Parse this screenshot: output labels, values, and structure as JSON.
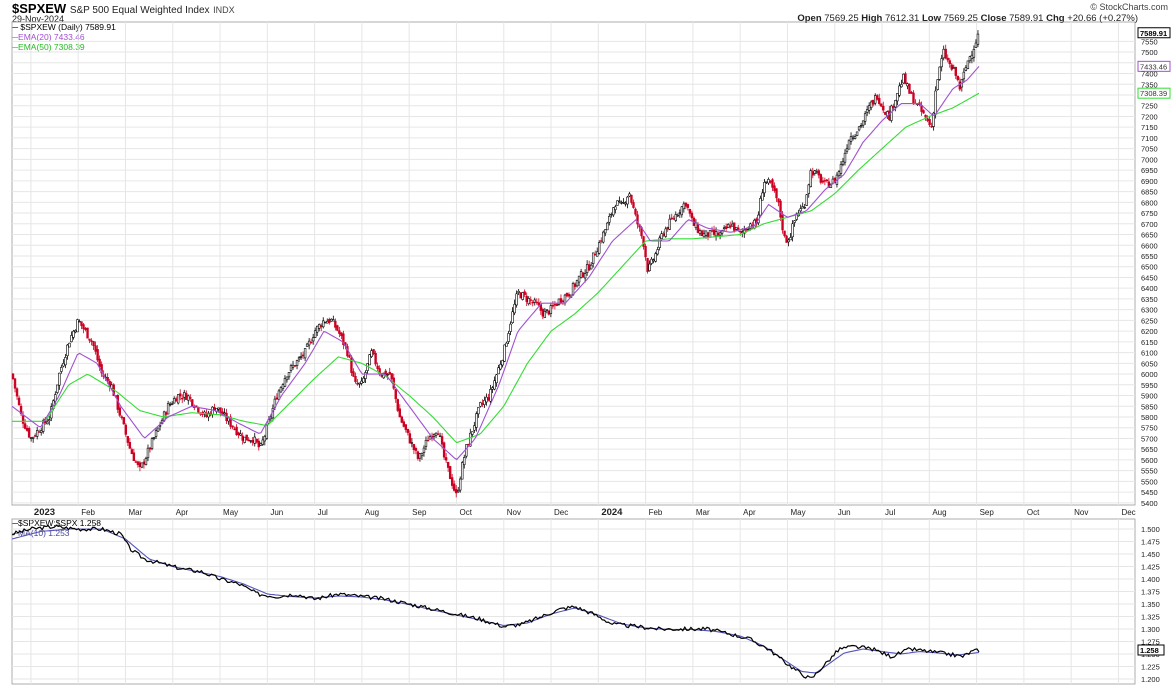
{
  "header": {
    "symbol": "$SPXEW",
    "name": "S&P 500 Equal Weighted Index",
    "exchange": "INDX",
    "date": "29-Nov-2024",
    "copyright": "© StockCharts.com",
    "ohlc": {
      "open_label": "Open",
      "open": "7569.25",
      "high_label": "High",
      "high": "7612.31",
      "low_label": "Low",
      "low": "7569.25",
      "close_label": "Close",
      "close": "7589.91",
      "chg_label": "Chg",
      "chg": "+20.66 (+0.27%)"
    }
  },
  "colors": {
    "up": "#000000",
    "down": "#cc0022",
    "ema20": "#a050d0",
    "ema50": "#33dd33",
    "ratio": "#000000",
    "ma10": "#5555bb",
    "grid": "#e6e6e6"
  },
  "chart_data": [
    {
      "type": "candlestick",
      "legend": [
        {
          "label": "$SPXEW (Daily) 7589.91",
          "color": "#000000"
        },
        {
          "label": "EMA(20) 7433.46",
          "color": "#a050d0"
        },
        {
          "label": "EMA(50) 7308.39",
          "color": "#33dd33"
        }
      ],
      "ylim": [
        5390,
        7640
      ],
      "y_ticks": [
        5400,
        5450,
        5500,
        5550,
        5600,
        5650,
        5700,
        5750,
        5800,
        5850,
        5900,
        5950,
        6000,
        6050,
        6100,
        6150,
        6200,
        6250,
        6300,
        6350,
        6400,
        6450,
        6500,
        6550,
        6600,
        6650,
        6700,
        6750,
        6800,
        6850,
        6900,
        6950,
        7000,
        7050,
        7100,
        7150,
        7200,
        7250,
        7300,
        7350,
        7400,
        7450,
        7500,
        7550
      ],
      "last_value_labels": [
        {
          "value": 7589.91,
          "label": "7589.91",
          "color": "#000000"
        },
        {
          "value": 7433.46,
          "label": "7433.46",
          "color": "#a050d0"
        },
        {
          "value": 7308.39,
          "label": "7308.39",
          "color": "#33dd33"
        }
      ],
      "x_months": [
        "2023",
        "Feb",
        "Mar",
        "Apr",
        "May",
        "Jun",
        "Jul",
        "Aug",
        "Sep",
        "Oct",
        "Nov",
        "Dec",
        "2024",
        "Feb",
        "Mar",
        "Apr",
        "May",
        "Jun",
        "Jul",
        "Aug",
        "Sep",
        "Oct",
        "Nov",
        "Dec"
      ],
      "x_bold": [
        "2023",
        "2024"
      ],
      "x_range_months": [
        -0.4,
        23.35
      ],
      "price_anchors": [
        [
          -0.4,
          6000
        ],
        [
          -0.2,
          5800
        ],
        [
          0.0,
          5700
        ],
        [
          0.2,
          5750
        ],
        [
          0.4,
          5800
        ],
        [
          0.6,
          6000
        ],
        [
          0.8,
          6150
        ],
        [
          1.0,
          6250
        ],
        [
          1.15,
          6200
        ],
        [
          1.3,
          6150
        ],
        [
          1.5,
          6000
        ],
        [
          1.7,
          5950
        ],
        [
          1.9,
          5800
        ],
        [
          2.1,
          5650
        ],
        [
          2.3,
          5550
        ],
        [
          2.5,
          5650
        ],
        [
          2.7,
          5750
        ],
        [
          2.9,
          5850
        ],
        [
          3.1,
          5900
        ],
        [
          3.3,
          5900
        ],
        [
          3.5,
          5850
        ],
        [
          3.7,
          5800
        ],
        [
          3.9,
          5850
        ],
        [
          4.1,
          5800
        ],
        [
          4.3,
          5750
        ],
        [
          4.5,
          5700
        ],
        [
          4.7,
          5700
        ],
        [
          4.85,
          5650
        ],
        [
          5.0,
          5750
        ],
        [
          5.2,
          5900
        ],
        [
          5.4,
          6000
        ],
        [
          5.6,
          6050
        ],
        [
          5.8,
          6100
        ],
        [
          6.0,
          6200
        ],
        [
          6.2,
          6250
        ],
        [
          6.35,
          6250
        ],
        [
          6.5,
          6200
        ],
        [
          6.7,
          6100
        ],
        [
          6.85,
          5950
        ],
        [
          7.0,
          5950
        ],
        [
          7.2,
          6100
        ],
        [
          7.4,
          6000
        ],
        [
          7.6,
          6000
        ],
        [
          7.8,
          5800
        ],
        [
          8.0,
          5700
        ],
        [
          8.2,
          5600
        ],
        [
          8.4,
          5700
        ],
        [
          8.6,
          5750
        ],
        [
          8.75,
          5600
        ],
        [
          8.9,
          5500
        ],
        [
          9.0,
          5430
        ],
        [
          9.1,
          5550
        ],
        [
          9.2,
          5650
        ],
        [
          9.35,
          5750
        ],
        [
          9.5,
          5850
        ],
        [
          9.7,
          5900
        ],
        [
          9.85,
          6000
        ],
        [
          10.0,
          6100
        ],
        [
          10.15,
          6250
        ],
        [
          10.3,
          6380
        ],
        [
          10.5,
          6350
        ],
        [
          10.7,
          6320
        ],
        [
          10.85,
          6280
        ],
        [
          11.0,
          6300
        ],
        [
          11.2,
          6350
        ],
        [
          11.4,
          6380
        ],
        [
          11.6,
          6450
        ],
        [
          11.8,
          6500
        ],
        [
          12.0,
          6600
        ],
        [
          12.2,
          6700
        ],
        [
          12.35,
          6800
        ],
        [
          12.5,
          6780
        ],
        [
          12.65,
          6850
        ],
        [
          12.8,
          6720
        ],
        [
          12.95,
          6620
        ],
        [
          13.05,
          6480
        ],
        [
          13.2,
          6550
        ],
        [
          13.35,
          6650
        ],
        [
          13.5,
          6700
        ],
        [
          13.7,
          6760
        ],
        [
          13.85,
          6800
        ],
        [
          14.0,
          6700
        ],
        [
          14.2,
          6650
        ],
        [
          14.4,
          6650
        ],
        [
          14.6,
          6650
        ],
        [
          14.8,
          6700
        ],
        [
          15.0,
          6650
        ],
        [
          15.2,
          6700
        ],
        [
          15.35,
          6700
        ],
        [
          15.5,
          6900
        ],
        [
          15.65,
          6880
        ],
        [
          15.8,
          6800
        ],
        [
          15.95,
          6620
        ],
        [
          16.05,
          6640
        ],
        [
          16.2,
          6750
        ],
        [
          16.35,
          6780
        ],
        [
          16.5,
          6950
        ],
        [
          16.65,
          6920
        ],
        [
          16.8,
          6880
        ],
        [
          17.0,
          6900
        ],
        [
          17.15,
          6980
        ],
        [
          17.3,
          7100
        ],
        [
          17.45,
          7130
        ],
        [
          17.6,
          7180
        ],
        [
          17.75,
          7250
        ],
        [
          17.9,
          7300
        ],
        [
          18.0,
          7250
        ],
        [
          18.15,
          7200
        ],
        [
          18.3,
          7300
        ],
        [
          18.45,
          7380
        ],
        [
          18.6,
          7300
        ],
        [
          18.75,
          7250
        ],
        [
          18.9,
          7200
        ],
        [
          19.05,
          7150
        ],
        [
          19.15,
          7350
        ],
        [
          19.3,
          7500
        ],
        [
          19.45,
          7430
        ],
        [
          19.55,
          7400
        ],
        [
          19.65,
          7330
        ],
        [
          19.8,
          7450
        ],
        [
          19.95,
          7530
        ],
        [
          20.05,
          7590
        ]
      ],
      "ema_20_anchors": [
        [
          -0.4,
          5850
        ],
        [
          0.2,
          5750
        ],
        [
          0.6,
          5900
        ],
        [
          1.0,
          6100
        ],
        [
          1.4,
          6050
        ],
        [
          1.9,
          5850
        ],
        [
          2.4,
          5700
        ],
        [
          2.9,
          5800
        ],
        [
          3.4,
          5850
        ],
        [
          3.9,
          5830
        ],
        [
          4.4,
          5770
        ],
        [
          4.85,
          5720
        ],
        [
          5.3,
          5900
        ],
        [
          5.8,
          6050
        ],
        [
          6.2,
          6200
        ],
        [
          6.6,
          6150
        ],
        [
          7.0,
          6000
        ],
        [
          7.5,
          6000
        ],
        [
          8.0,
          5850
        ],
        [
          8.5,
          5700
        ],
        [
          9.0,
          5600
        ],
        [
          9.4,
          5700
        ],
        [
          9.9,
          5950
        ],
        [
          10.3,
          6200
        ],
        [
          10.8,
          6330
        ],
        [
          11.3,
          6330
        ],
        [
          11.8,
          6450
        ],
        [
          12.3,
          6620
        ],
        [
          12.8,
          6720
        ],
        [
          13.1,
          6620
        ],
        [
          13.5,
          6620
        ],
        [
          13.9,
          6720
        ],
        [
          14.3,
          6680
        ],
        [
          14.8,
          6660
        ],
        [
          15.3,
          6690
        ],
        [
          15.6,
          6790
        ],
        [
          16.0,
          6730
        ],
        [
          16.4,
          6760
        ],
        [
          16.8,
          6860
        ],
        [
          17.2,
          6930
        ],
        [
          17.6,
          7080
        ],
        [
          18.0,
          7180
        ],
        [
          18.4,
          7260
        ],
        [
          18.8,
          7260
        ],
        [
          19.1,
          7200
        ],
        [
          19.5,
          7330
        ],
        [
          19.8,
          7370
        ],
        [
          20.05,
          7433
        ]
      ],
      "ema_50_anchors": [
        [
          -0.4,
          5780
        ],
        [
          0.3,
          5780
        ],
        [
          0.8,
          5950
        ],
        [
          1.2,
          6000
        ],
        [
          1.8,
          5920
        ],
        [
          2.3,
          5830
        ],
        [
          2.8,
          5800
        ],
        [
          3.4,
          5820
        ],
        [
          4.0,
          5810
        ],
        [
          4.5,
          5780
        ],
        [
          5.0,
          5760
        ],
        [
          5.5,
          5870
        ],
        [
          6.0,
          5980
        ],
        [
          6.5,
          6080
        ],
        [
          7.0,
          6050
        ],
        [
          7.5,
          5990
        ],
        [
          8.0,
          5900
        ],
        [
          8.5,
          5800
        ],
        [
          9.0,
          5680
        ],
        [
          9.5,
          5720
        ],
        [
          10.0,
          5850
        ],
        [
          10.5,
          6050
        ],
        [
          11.0,
          6200
        ],
        [
          11.5,
          6280
        ],
        [
          12.0,
          6380
        ],
        [
          12.5,
          6500
        ],
        [
          13.0,
          6620
        ],
        [
          13.5,
          6630
        ],
        [
          14.0,
          6630
        ],
        [
          14.5,
          6640
        ],
        [
          15.0,
          6650
        ],
        [
          15.5,
          6700
        ],
        [
          16.0,
          6730
        ],
        [
          16.5,
          6760
        ],
        [
          17.0,
          6840
        ],
        [
          17.5,
          6950
        ],
        [
          18.0,
          7050
        ],
        [
          18.5,
          7150
        ],
        [
          19.0,
          7200
        ],
        [
          19.5,
          7240
        ],
        [
          20.05,
          7308
        ]
      ]
    },
    {
      "type": "line",
      "legend": [
        {
          "label": "$SPXEW:$SPX 1.258",
          "color": "#000000"
        },
        {
          "label": "MA(10) 1.253",
          "color": "#5555bb"
        }
      ],
      "ylim": [
        1.19,
        1.52
      ],
      "y_ticks": [
        1.2,
        1.225,
        1.25,
        1.275,
        1.3,
        1.325,
        1.35,
        1.375,
        1.4,
        1.425,
        1.45,
        1.475,
        1.5
      ],
      "y_tick_labels": [
        "1.200",
        "1.225",
        "1.250",
        "1.275",
        "1.300",
        "1.325",
        "1.350",
        "1.375",
        "1.400",
        "1.425",
        "1.450",
        "1.475",
        "1.500"
      ],
      "last_value_label": {
        "value": 1.258,
        "label": "1.258"
      },
      "ratio_anchors": [
        [
          -0.4,
          1.49
        ],
        [
          0.0,
          1.5
        ],
        [
          0.5,
          1.505
        ],
        [
          1.0,
          1.5
        ],
        [
          1.5,
          1.5
        ],
        [
          1.9,
          1.49
        ],
        [
          2.1,
          1.46
        ],
        [
          2.4,
          1.44
        ],
        [
          2.8,
          1.43
        ],
        [
          3.2,
          1.42
        ],
        [
          3.6,
          1.415
        ],
        [
          4.0,
          1.4
        ],
        [
          4.4,
          1.39
        ],
        [
          4.8,
          1.37
        ],
        [
          5.2,
          1.365
        ],
        [
          5.6,
          1.37
        ],
        [
          6.0,
          1.36
        ],
        [
          6.5,
          1.37
        ],
        [
          7.0,
          1.365
        ],
        [
          7.5,
          1.36
        ],
        [
          8.0,
          1.35
        ],
        [
          8.5,
          1.34
        ],
        [
          9.0,
          1.33
        ],
        [
          9.5,
          1.32
        ],
        [
          10.0,
          1.305
        ],
        [
          10.4,
          1.31
        ],
        [
          10.8,
          1.325
        ],
        [
          11.2,
          1.34
        ],
        [
          11.5,
          1.345
        ],
        [
          11.9,
          1.33
        ],
        [
          12.3,
          1.31
        ],
        [
          12.8,
          1.305
        ],
        [
          13.3,
          1.3
        ],
        [
          13.8,
          1.3
        ],
        [
          14.3,
          1.3
        ],
        [
          14.8,
          1.29
        ],
        [
          15.2,
          1.28
        ],
        [
          15.6,
          1.26
        ],
        [
          16.0,
          1.23
        ],
        [
          16.3,
          1.21
        ],
        [
          16.5,
          1.2
        ],
        [
          16.8,
          1.23
        ],
        [
          17.1,
          1.26
        ],
        [
          17.4,
          1.265
        ],
        [
          17.8,
          1.26
        ],
        [
          18.2,
          1.245
        ],
        [
          18.6,
          1.26
        ],
        [
          19.0,
          1.255
        ],
        [
          19.4,
          1.25
        ],
        [
          19.7,
          1.245
        ],
        [
          19.9,
          1.255
        ],
        [
          20.05,
          1.258
        ]
      ],
      "ma10_anchors": [
        [
          -0.4,
          1.48
        ],
        [
          0.2,
          1.495
        ],
        [
          0.8,
          1.5
        ],
        [
          1.5,
          1.5
        ],
        [
          2.0,
          1.48
        ],
        [
          2.5,
          1.44
        ],
        [
          3.0,
          1.425
        ],
        [
          3.5,
          1.415
        ],
        [
          4.0,
          1.405
        ],
        [
          4.5,
          1.39
        ],
        [
          5.0,
          1.37
        ],
        [
          5.5,
          1.365
        ],
        [
          6.0,
          1.362
        ],
        [
          6.5,
          1.366
        ],
        [
          7.0,
          1.364
        ],
        [
          7.5,
          1.358
        ],
        [
          8.0,
          1.349
        ],
        [
          8.5,
          1.338
        ],
        [
          9.0,
          1.328
        ],
        [
          9.5,
          1.318
        ],
        [
          10.0,
          1.307
        ],
        [
          10.5,
          1.312
        ],
        [
          11.0,
          1.33
        ],
        [
          11.5,
          1.342
        ],
        [
          12.0,
          1.328
        ],
        [
          12.5,
          1.31
        ],
        [
          13.0,
          1.302
        ],
        [
          13.5,
          1.299
        ],
        [
          14.0,
          1.299
        ],
        [
          14.5,
          1.295
        ],
        [
          15.0,
          1.286
        ],
        [
          15.5,
          1.266
        ],
        [
          15.9,
          1.24
        ],
        [
          16.3,
          1.215
        ],
        [
          16.6,
          1.212
        ],
        [
          16.9,
          1.232
        ],
        [
          17.2,
          1.252
        ],
        [
          17.6,
          1.26
        ],
        [
          18.0,
          1.255
        ],
        [
          18.4,
          1.25
        ],
        [
          18.8,
          1.255
        ],
        [
          19.2,
          1.252
        ],
        [
          19.6,
          1.248
        ],
        [
          20.05,
          1.253
        ]
      ]
    }
  ]
}
